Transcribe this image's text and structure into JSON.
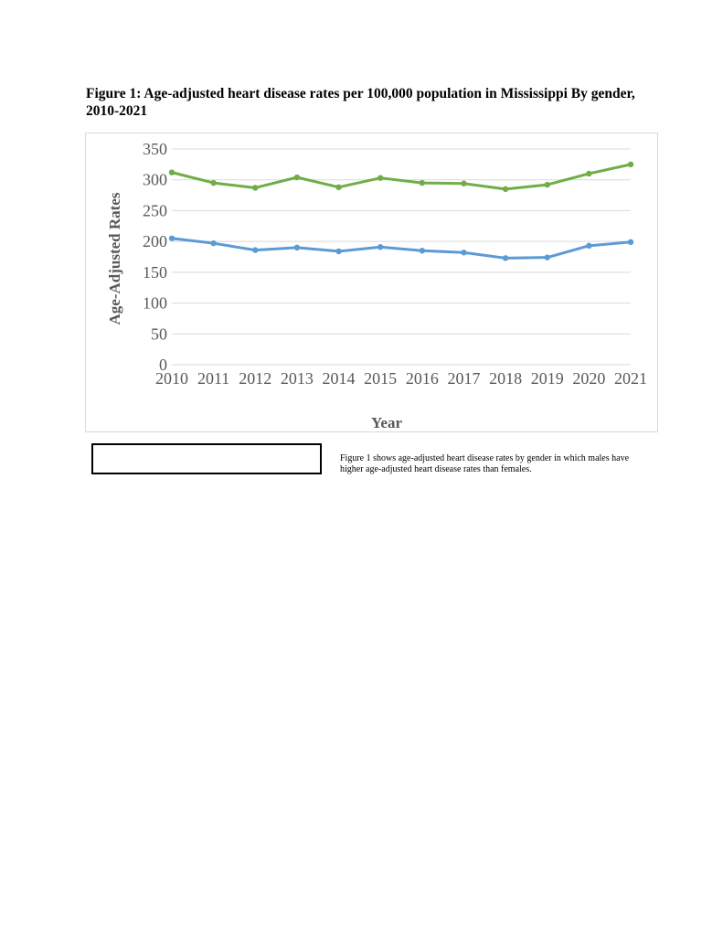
{
  "document": {
    "title": "Figure 1: Age-adjusted heart disease rates per 100,000 population in Mississippi By gender, 2010-2021",
    "caption": "Figure 1 shows age-adjusted heart disease rates by gender in which males have higher age-adjusted heart disease rates than females."
  },
  "chart_data": {
    "type": "line",
    "title": "",
    "xlabel": "Year",
    "ylabel": "Age-Adjusted Rates",
    "categories": [
      "2010",
      "2011",
      "2012",
      "2013",
      "2014",
      "2015",
      "2016",
      "2017",
      "2018",
      "2019",
      "2020",
      "2021"
    ],
    "ylim": [
      0,
      350
    ],
    "yticks": [
      0,
      50,
      100,
      150,
      200,
      250,
      300,
      350
    ],
    "grid": true,
    "series": [
      {
        "color": "#70ad47",
        "values": [
          312,
          295,
          287,
          304,
          288,
          303,
          295,
          294,
          285,
          292,
          310,
          325
        ]
      },
      {
        "color": "#5b9bd5",
        "values": [
          205,
          197,
          186,
          190,
          184,
          191,
          185,
          182,
          173,
          174,
          193,
          199
        ]
      }
    ]
  }
}
